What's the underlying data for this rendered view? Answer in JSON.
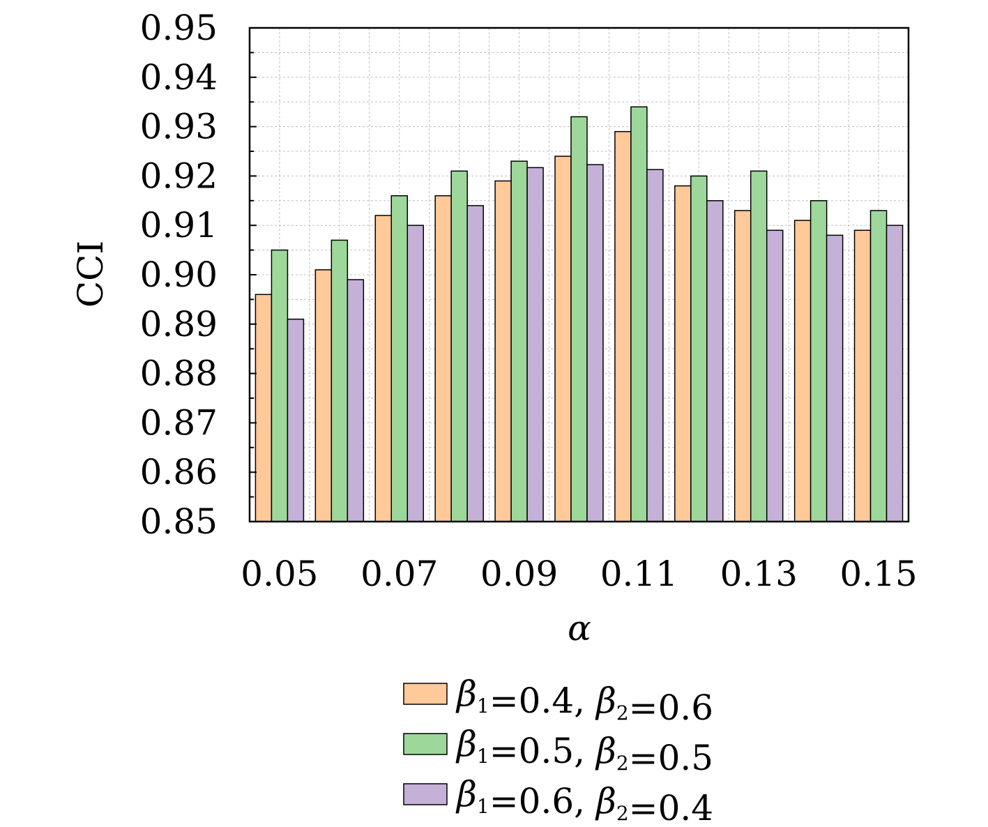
{
  "chart_data": {
    "type": "bar",
    "title": "",
    "xlabel": "α",
    "ylabel": "CCI",
    "categories": [
      "0.05",
      "0.06",
      "0.07",
      "0.08",
      "0.09",
      "0.10",
      "0.11",
      "0.12",
      "0.13",
      "0.14",
      "0.15"
    ],
    "xtick_labels": [
      "0.05",
      "0.07",
      "0.09",
      "0.11",
      "0.13",
      "0.15"
    ],
    "ylim": [
      0.85,
      0.95
    ],
    "yticks": [
      "0.85",
      "0.86",
      "0.87",
      "0.88",
      "0.89",
      "0.90",
      "0.91",
      "0.92",
      "0.93",
      "0.94",
      "0.95"
    ],
    "grid": true,
    "legend_position": "bottom",
    "series": [
      {
        "legend": {
          "b": "β",
          "s1": "1",
          "m": "=0.4, ",
          "b2": "β",
          "s2": "2",
          "e": "=0.6"
        },
        "color": "#ffc999",
        "values": [
          0.896,
          0.901,
          0.912,
          0.916,
          0.919,
          0.924,
          0.929,
          0.918,
          0.913,
          0.911,
          0.909
        ]
      },
      {
        "legend": {
          "b": "β",
          "s1": "1",
          "m": "=0.5, ",
          "b2": "β",
          "s2": "2",
          "e": "=0.5"
        },
        "color": "#9dd89a",
        "values": [
          0.905,
          0.907,
          0.916,
          0.921,
          0.923,
          0.932,
          0.934,
          0.92,
          0.921,
          0.915,
          0.913
        ]
      },
      {
        "legend": {
          "b": "β",
          "s1": "1",
          "m": "=0.6, ",
          "b2": "β",
          "s2": "2",
          "e": "=0.4"
        },
        "color": "#c5b1d8",
        "values": [
          0.891,
          0.899,
          0.91,
          0.914,
          0.9217,
          0.9223,
          0.9213,
          0.915,
          0.909,
          0.908,
          0.91
        ]
      }
    ]
  }
}
